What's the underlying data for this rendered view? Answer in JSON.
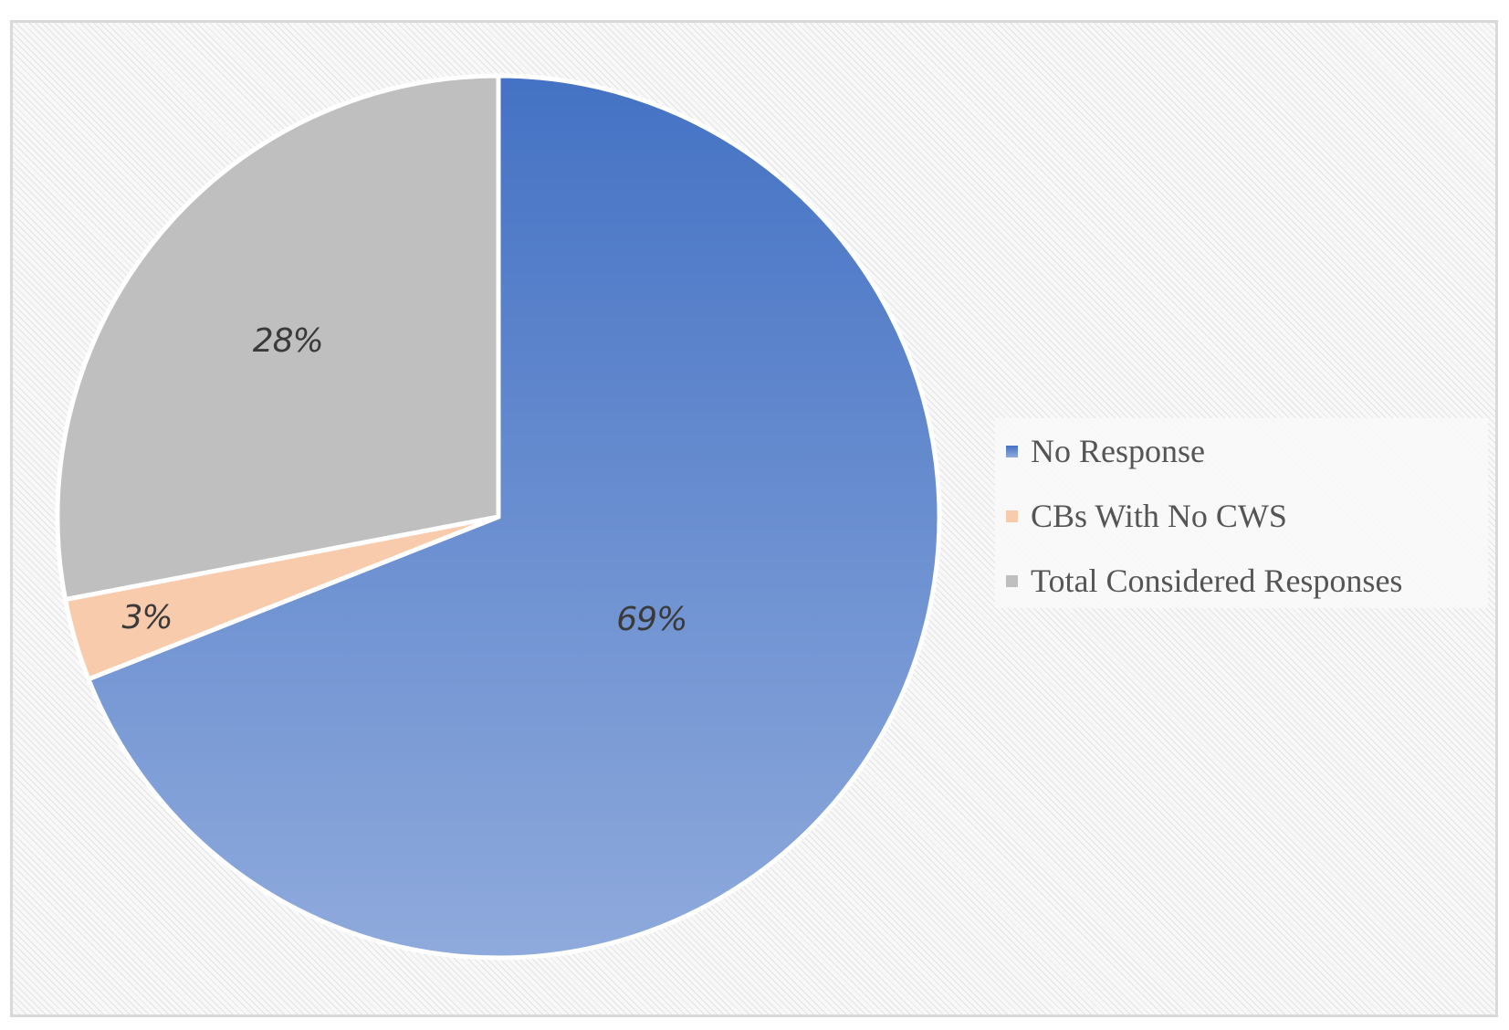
{
  "chart_data": {
    "type": "pie",
    "slices": [
      {
        "name": "No Response",
        "value": 69,
        "label": "69%",
        "color": "#4472c4",
        "color_light": "#8faadc"
      },
      {
        "name": "CBs With No CWS",
        "value": 3,
        "label": "3%",
        "color": "#f8cbad",
        "color_light": "#f8cbad"
      },
      {
        "name": "Total Considered Responses",
        "value": 28,
        "label": "28%",
        "color": "#bfbfbf",
        "color_light": "#bfbfbf"
      }
    ],
    "start": "12 o'clock",
    "direction": "clockwise",
    "legend_position": "right"
  }
}
